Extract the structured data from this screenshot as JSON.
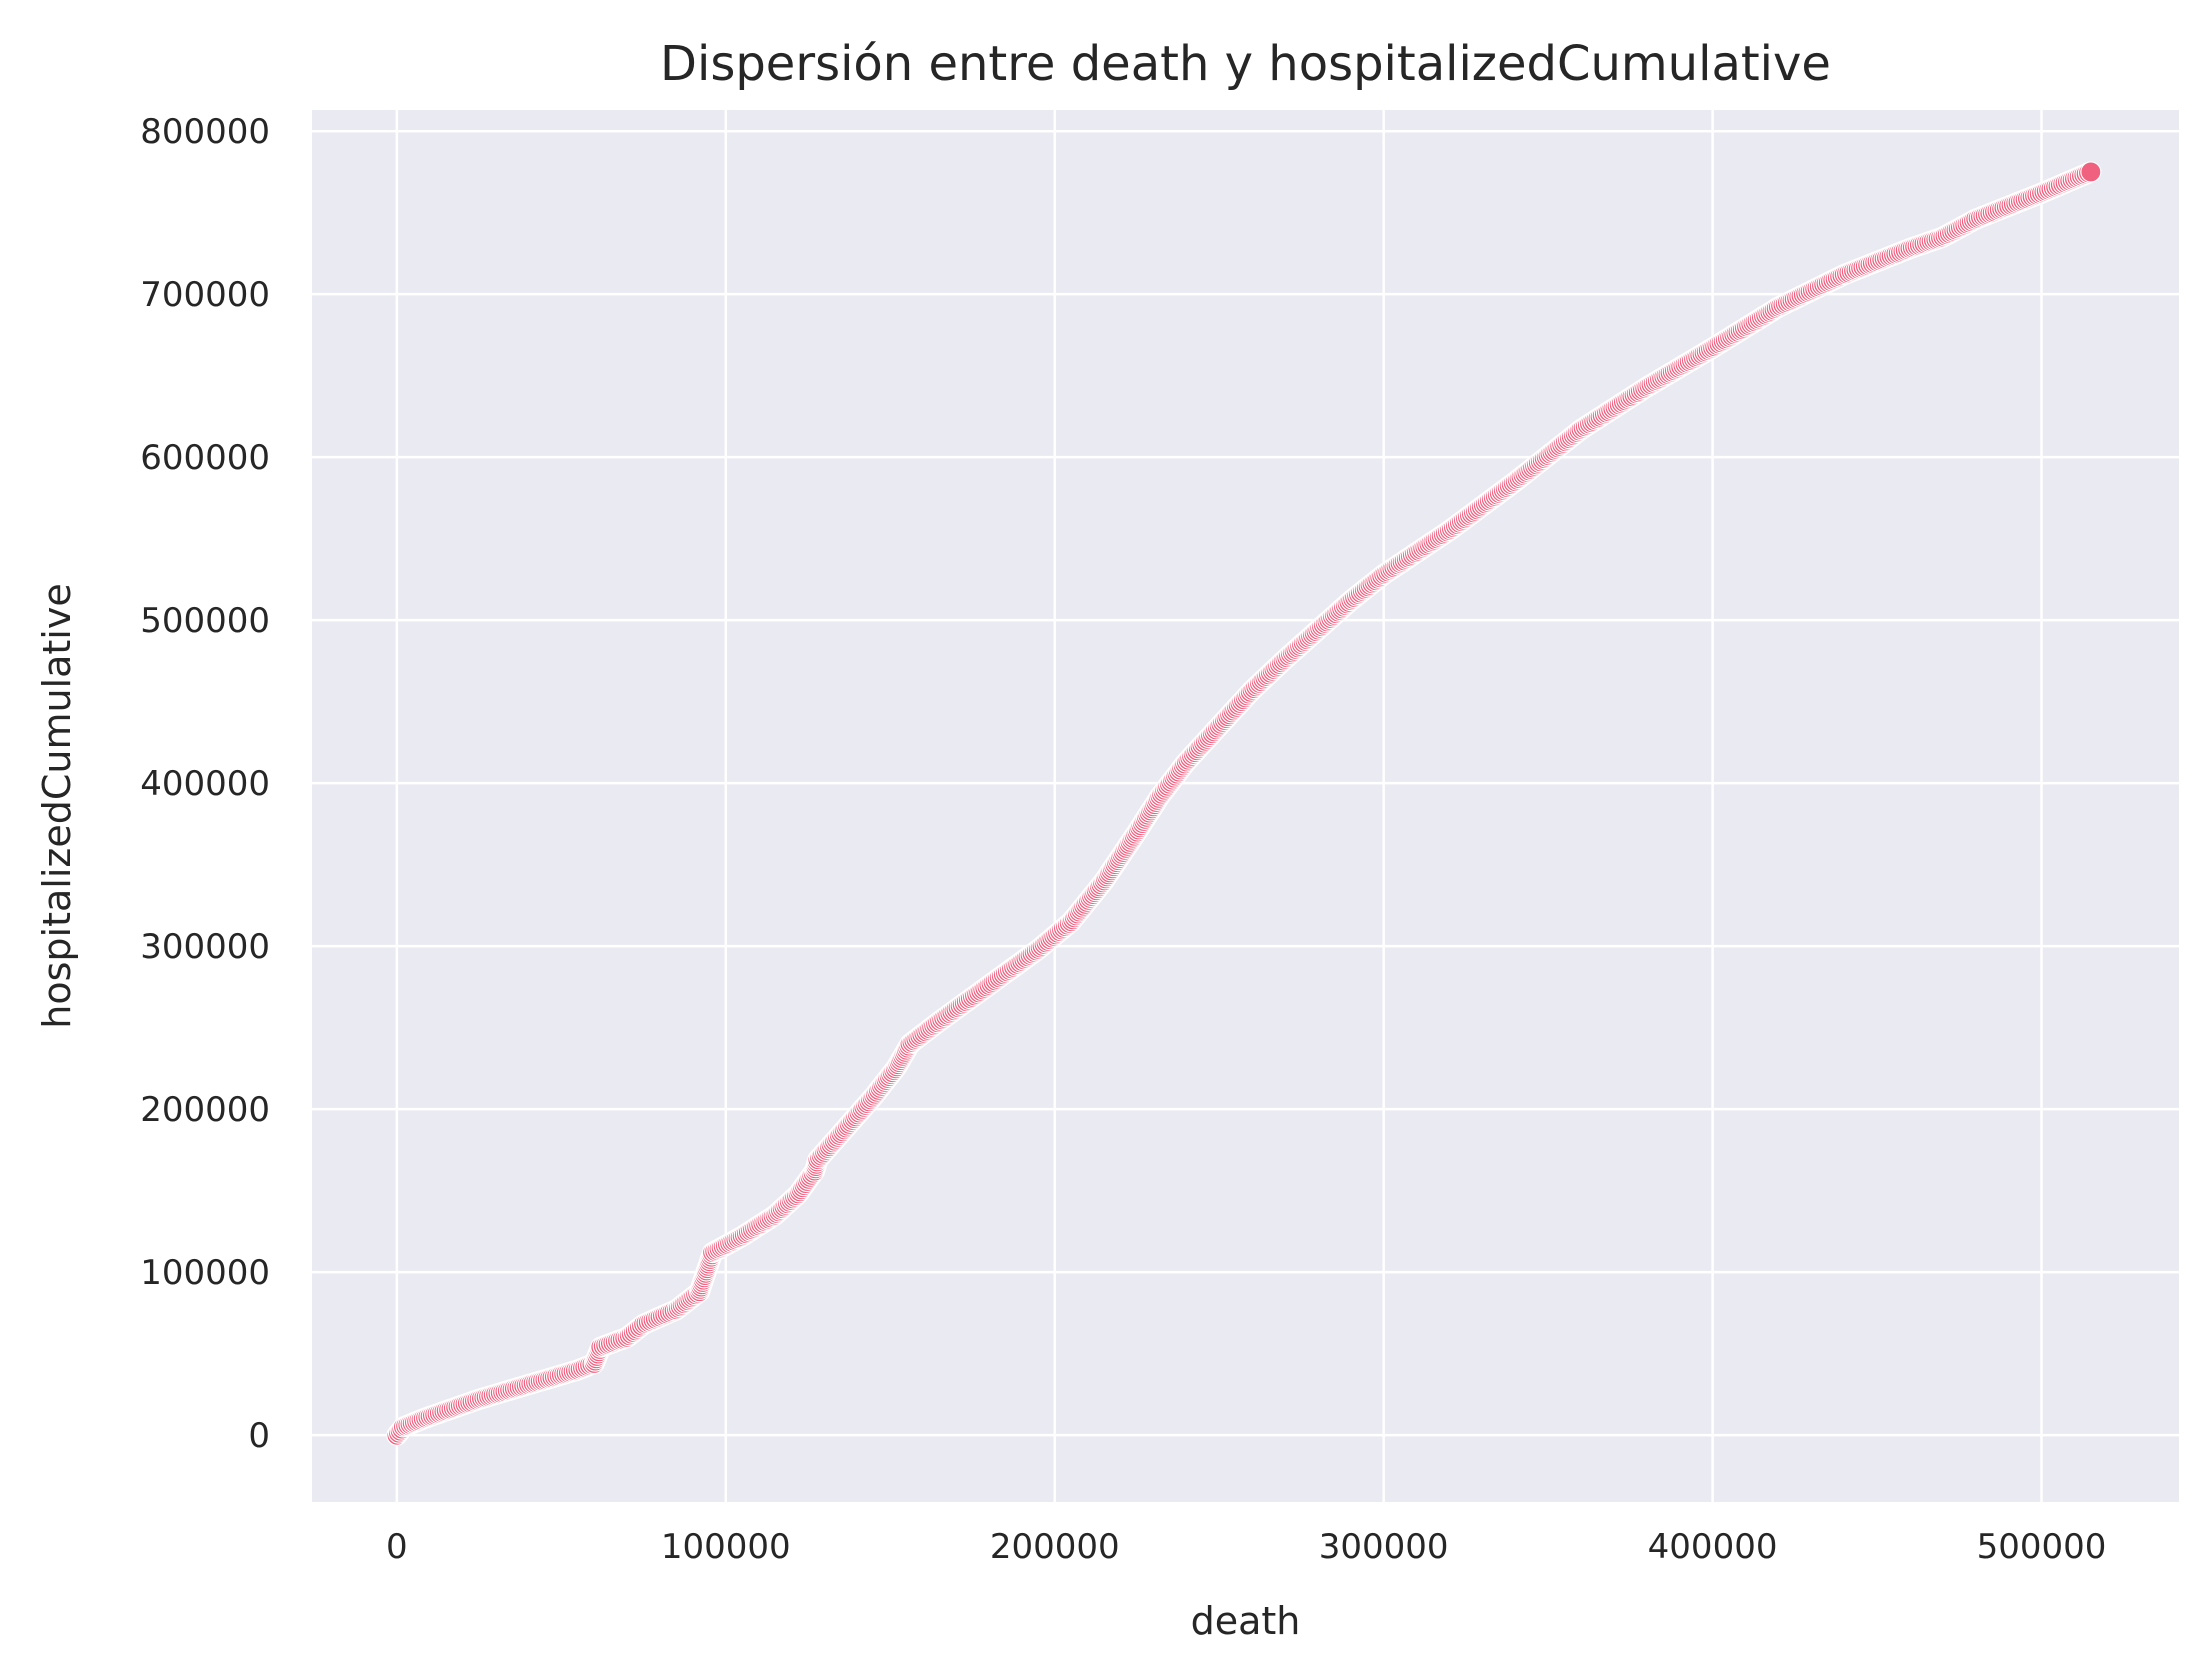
{
  "chart_data": {
    "type": "scatter",
    "title": "Dispersión entre death y hospitalizedCumulative",
    "xlabel": "death",
    "ylabel": "hospitalizedCumulative",
    "xlim": [
      -25800,
      541800
    ],
    "ylim": [
      -41000,
      813000
    ],
    "xticks": [
      0,
      100000,
      200000,
      300000,
      400000,
      500000
    ],
    "yticks": [
      0,
      100000,
      200000,
      300000,
      400000,
      500000,
      600000,
      700000,
      800000
    ],
    "grid": true,
    "legend": "none",
    "colors": {
      "point": "#f0607f",
      "point_edge": "#ffffff",
      "background": "#eaeaf2",
      "grid": "#ffffff"
    },
    "curve_points": [
      [
        0,
        0
      ],
      [
        2000,
        5000
      ],
      [
        8000,
        10000
      ],
      [
        15000,
        15000
      ],
      [
        25000,
        22000
      ],
      [
        35000,
        28000
      ],
      [
        45000,
        34000
      ],
      [
        55000,
        40000
      ],
      [
        60000,
        44000
      ],
      [
        62000,
        54000
      ],
      [
        70000,
        60000
      ],
      [
        75000,
        68000
      ],
      [
        85000,
        77000
      ],
      [
        92000,
        88000
      ],
      [
        96000,
        112000
      ],
      [
        105000,
        122000
      ],
      [
        115000,
        135000
      ],
      [
        122000,
        148000
      ],
      [
        127000,
        162000
      ],
      [
        128000,
        169000
      ],
      [
        135000,
        185000
      ],
      [
        145000,
        208000
      ],
      [
        152000,
        226000
      ],
      [
        156000,
        240000
      ],
      [
        165000,
        254000
      ],
      [
        180000,
        276000
      ],
      [
        195000,
        298000
      ],
      [
        205000,
        315000
      ],
      [
        215000,
        340000
      ],
      [
        225000,
        370000
      ],
      [
        232000,
        392000
      ],
      [
        240000,
        413000
      ],
      [
        250000,
        435000
      ],
      [
        260000,
        457000
      ],
      [
        270000,
        476000
      ],
      [
        280000,
        494000
      ],
      [
        290000,
        512000
      ],
      [
        300000,
        528000
      ],
      [
        320000,
        555000
      ],
      [
        340000,
        585000
      ],
      [
        360000,
        617000
      ],
      [
        380000,
        643000
      ],
      [
        400000,
        667000
      ],
      [
        420000,
        692000
      ],
      [
        440000,
        712000
      ],
      [
        460000,
        728000
      ],
      [
        470000,
        735000
      ],
      [
        480000,
        746000
      ],
      [
        500000,
        762000
      ],
      [
        515000,
        775000
      ]
    ]
  }
}
